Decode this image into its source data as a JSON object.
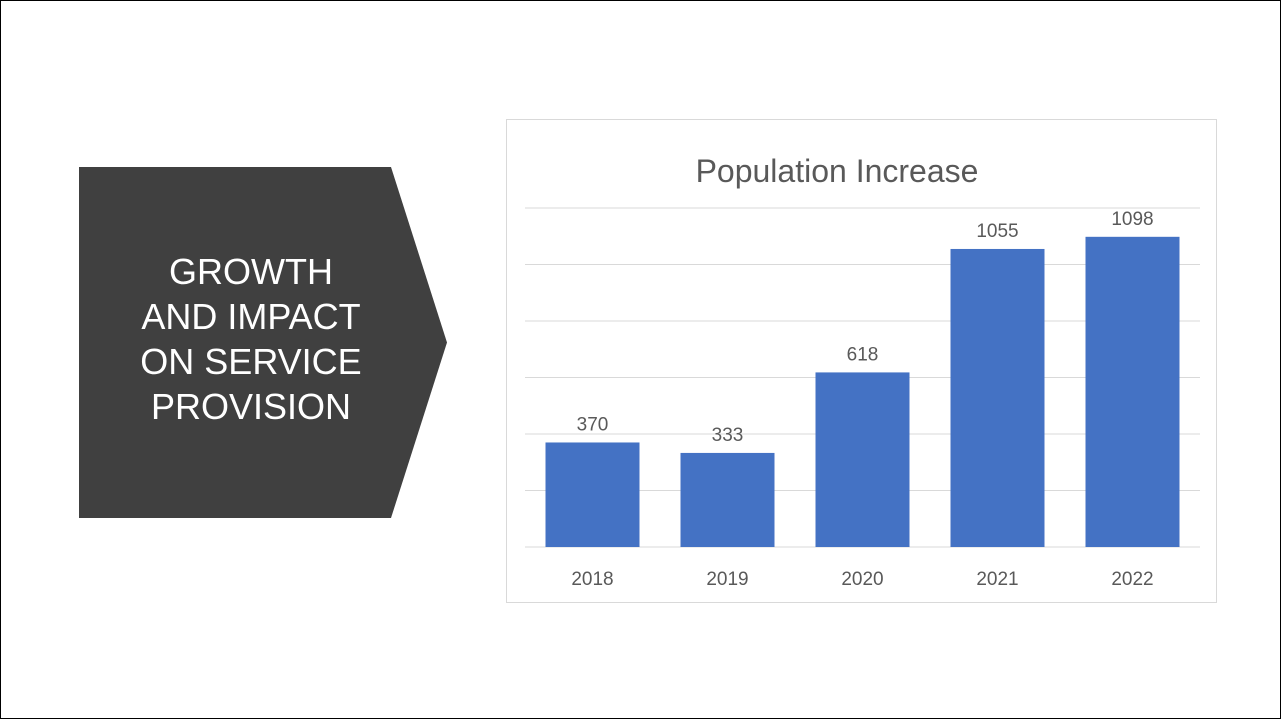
{
  "slide": {
    "heading_lines": [
      "GROWTH",
      "AND IMPACT",
      "ON SERVICE",
      "PROVISION"
    ]
  },
  "colors": {
    "pentagon_fill": "#404040",
    "bar_fill": "#4472c4",
    "gridline": "#d9d9d9",
    "text": "#595959"
  },
  "chart_data": {
    "type": "bar",
    "title": "Population Increase",
    "categories": [
      "2018",
      "2019",
      "2020",
      "2021",
      "2022"
    ],
    "values": [
      370,
      333,
      618,
      1055,
      1098
    ],
    "ylim": [
      0,
      1200
    ],
    "grid": true,
    "legend": "none",
    "data_labels": true
  }
}
